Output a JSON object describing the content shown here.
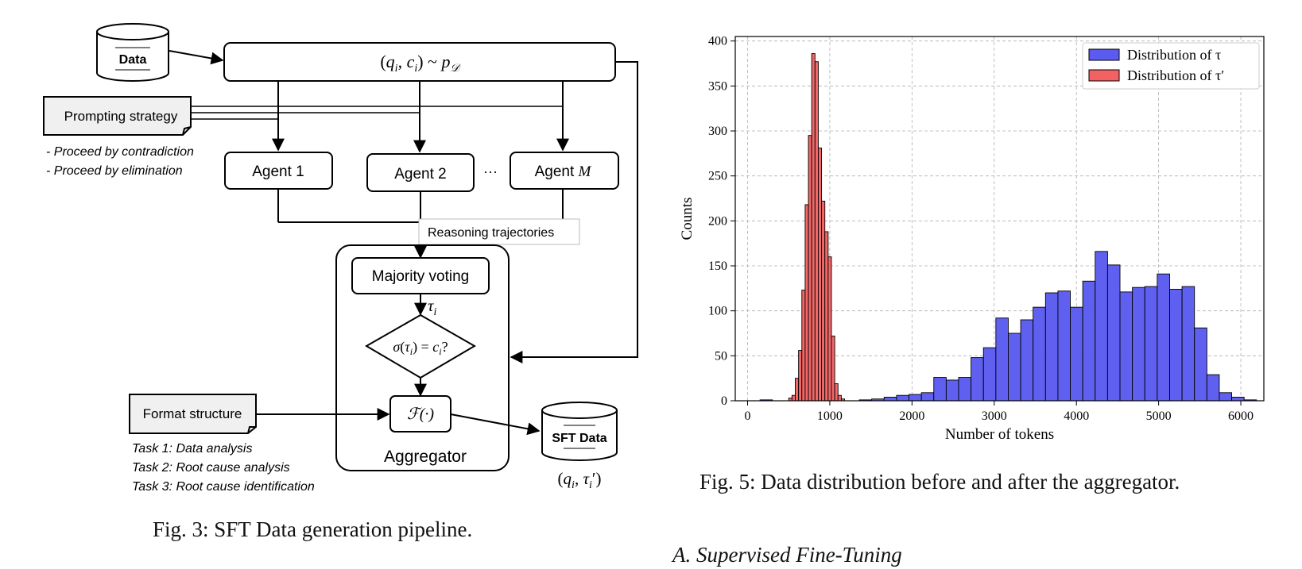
{
  "figure3": {
    "caption": "Fig. 3: SFT Data generation pipeline.",
    "data_label": "Data",
    "sample_formula": "(q_i, c_i) ~ p_D",
    "prompting_label": "Prompting strategy",
    "prompting_items": [
      "Proceed by contradiction",
      "Proceed by elimination"
    ],
    "agents": [
      "Agent 1",
      "Agent 2",
      "Agent M"
    ],
    "ellipsis": "···",
    "reasoning_label": "Reasoning trajectories",
    "majority_label": "Majority voting",
    "tau_label": "τ_i",
    "check_label": "σ(τ_i) = c_i?",
    "format_fn": "ℱ(·)",
    "aggregator_label": "Aggregator",
    "format_label": "Format structure",
    "tasks": [
      "Task 1: Data analysis",
      "Task 2: Root cause analysis",
      "Task 3: Root cause identification"
    ],
    "sft_label": "SFT Data",
    "output_label": "(q_i, τ_i′)"
  },
  "figure5": {
    "caption": "Fig. 5: Data distribution before and after the aggregator."
  },
  "section_heading": "A. Supervised Fine-Tuning",
  "chart_data": {
    "type": "histogram",
    "title": "",
    "xlabel": "Number of tokens",
    "ylabel": "Counts",
    "xlim": [
      -150,
      6280
    ],
    "ylim": [
      0,
      405
    ],
    "xticks": [
      0,
      1000,
      2000,
      3000,
      4000,
      5000,
      6000
    ],
    "yticks": [
      0,
      50,
      100,
      150,
      200,
      250,
      300,
      350,
      400
    ],
    "grid": true,
    "legend_position": "top-right",
    "series": [
      {
        "name": "Distribution of τ",
        "color": "#5b5bf0",
        "bin_width": 151,
        "bin_start": 0,
        "values": [
          0,
          1,
          0,
          0,
          0,
          0,
          0,
          0,
          0,
          1,
          2,
          4,
          6,
          7,
          9,
          26,
          23,
          26,
          48,
          59,
          92,
          75,
          90,
          104,
          120,
          122,
          104,
          133,
          166,
          151,
          121,
          126,
          127,
          141,
          124,
          127,
          81,
          29,
          9,
          4,
          1
        ]
      },
      {
        "name": "Distribution of τ′",
        "color": "#f26262",
        "bin_width": 40,
        "bin_start": 500,
        "values": [
          3,
          6,
          25,
          56,
          123,
          218,
          295,
          386,
          377,
          281,
          222,
          188,
          160,
          72,
          19,
          6,
          2
        ]
      }
    ]
  }
}
